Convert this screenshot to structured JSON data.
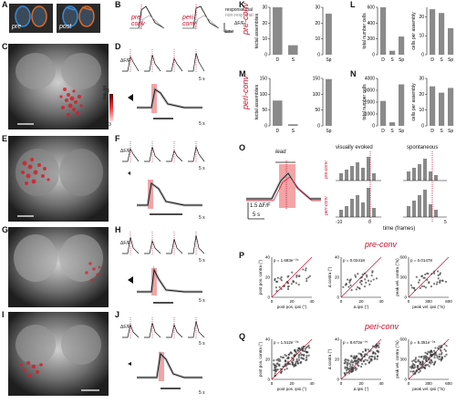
{
  "panels": {
    "A": "A",
    "B": "B",
    "C": "C",
    "D": "D",
    "E": "E",
    "F": "F",
    "G": "G",
    "H": "H",
    "I": "I",
    "J": "J",
    "K": "K",
    "L": "L",
    "M": "M",
    "N": "N",
    "O": "O",
    "P": "P",
    "Q": "Q"
  },
  "panel_A": {
    "pre": "pre",
    "post": "post"
  },
  "panel_B": {
    "pre": "pre",
    "conv": "conv",
    "peri": "peri",
    "legend_response": "response trial",
    "legend_nonresp": "non-resp. trial",
    "scale_dff": "ΔF/F",
    "time": "time"
  },
  "panel_C": {
    "colorbar_top": "3",
    "colorbar_bottom": "1.3",
    "colorbar_label": "-log₁₀(p)"
  },
  "traces": {
    "dff": "ΔF/F",
    "scale_5s": "5 s",
    "scale_1": "1"
  },
  "titles": {
    "pre_conv": "pre-conv",
    "peri_conv": "peri-conv"
  },
  "chart_data": [
    {
      "type": "bar",
      "panel": "K",
      "categories": [
        "D",
        "S"
      ],
      "values": [
        30,
        6
      ],
      "ylabel": "tectal assemblies",
      "ylim": [
        0,
        30
      ],
      "yticks": [
        0,
        10,
        20,
        30
      ]
    },
    {
      "type": "bar",
      "panel": "K",
      "categories": [
        "Sp"
      ],
      "values": [
        26
      ],
      "ylim": [
        0,
        30
      ],
      "yticks": [
        0,
        10,
        20,
        30
      ]
    },
    {
      "type": "bar",
      "panel": "L",
      "categories": [
        "D",
        "S",
        "Sp"
      ],
      "values": [
        600,
        50,
        230
      ],
      "ylabel": "total number cells",
      "ylim": [
        0,
        600
      ],
      "yticks": [
        0,
        200,
        400,
        600
      ]
    },
    {
      "type": "bar",
      "panel": "L",
      "categories": [
        "D",
        "S",
        "Sp"
      ],
      "values": [
        24,
        22,
        14
      ],
      "ylabel": "cells per assembly",
      "ylim": [
        0,
        25
      ],
      "yticks": [
        0,
        10,
        20
      ]
    },
    {
      "type": "bar",
      "panel": "M",
      "categories": [
        "D",
        "S"
      ],
      "values": [
        80,
        5
      ],
      "ylabel": "tectal assemblies",
      "ylim": [
        0,
        150
      ],
      "yticks": [
        0,
        50,
        100,
        150
      ]
    },
    {
      "type": "bar",
      "panel": "M",
      "categories": [
        "Sp"
      ],
      "values": [
        148
      ],
      "ylim": [
        0,
        150
      ],
      "yticks": [
        0,
        50,
        100,
        150
      ]
    },
    {
      "type": "bar",
      "panel": "N",
      "categories": [
        "D",
        "S",
        "Sp"
      ],
      "values": [
        2100,
        300,
        3500
      ],
      "ylabel": "total number cells",
      "ylim": [
        0,
        4000
      ],
      "yticks": [
        0,
        1000,
        2000,
        3000,
        4000
      ]
    },
    {
      "type": "bar",
      "panel": "N",
      "categories": [
        "D",
        "S",
        "Sp"
      ],
      "values": [
        25,
        21,
        24
      ],
      "ylabel": "cells per assembly",
      "ylim": [
        0,
        30
      ],
      "yticks": [
        0,
        10,
        20,
        30
      ]
    },
    {
      "type": "bar",
      "panel": "O",
      "title": "visually evoked",
      "ylim": [
        0,
        40
      ]
    },
    {
      "type": "bar",
      "panel": "O",
      "title": "spontaneous",
      "xlabel": "time (frames)",
      "xticks": [
        -10,
        -5,
        0,
        5
      ],
      "lead": "lead",
      "scale": "1.5 ΔF/F",
      "scale_time": "5 s",
      "row_labels": [
        "pre-conv",
        "peri-conv"
      ]
    },
    {
      "type": "scatter",
      "panel": "P",
      "title": "pre-conv",
      "xlabel": "post pos. ipsi (°)",
      "ylabel": "post pos. contra (°)",
      "p_label": "p = 1.683e⁻⁰⁴",
      "ticks": [
        "0",
        "20",
        "40"
      ]
    },
    {
      "type": "scatter",
      "panel": "P",
      "xlabel": "Δ ipsi (°)",
      "ylabel": "Δ contra (°)",
      "p_label": "p = 0.02418",
      "ticks": [
        "0",
        "20",
        "40"
      ]
    },
    {
      "type": "scatter",
      "panel": "P",
      "xlabel": "peak vel. ipsi (°/s)",
      "ylabel": "peak vel. contra (°/s)",
      "p_label": "p = 0.01478",
      "ticks": [
        "0",
        "300",
        "600"
      ]
    },
    {
      "type": "scatter",
      "panel": "Q",
      "title": "peri-conv",
      "xlabel": "post pos. ipsi (°)",
      "ylabel": "post pos. contra (°)",
      "p_label": "p = 1.512e⁻⁰⁶",
      "ticks": [
        "0",
        "20",
        "40"
      ]
    },
    {
      "type": "scatter",
      "panel": "Q",
      "xlabel": "Δ ipsi (°)",
      "ylabel": "Δ contra (°)",
      "p_label": "p = 8.672e⁻⁰⁷",
      "ticks": [
        "0",
        "20",
        "40"
      ]
    },
    {
      "type": "scatter",
      "panel": "Q",
      "xlabel": "peak vel. ipsi (°/s)",
      "ylabel": "peak vel. contra (°/s)",
      "p_label": "p = 5.351e⁻⁰⁶",
      "ticks": [
        "0",
        "300",
        "600"
      ]
    }
  ]
}
